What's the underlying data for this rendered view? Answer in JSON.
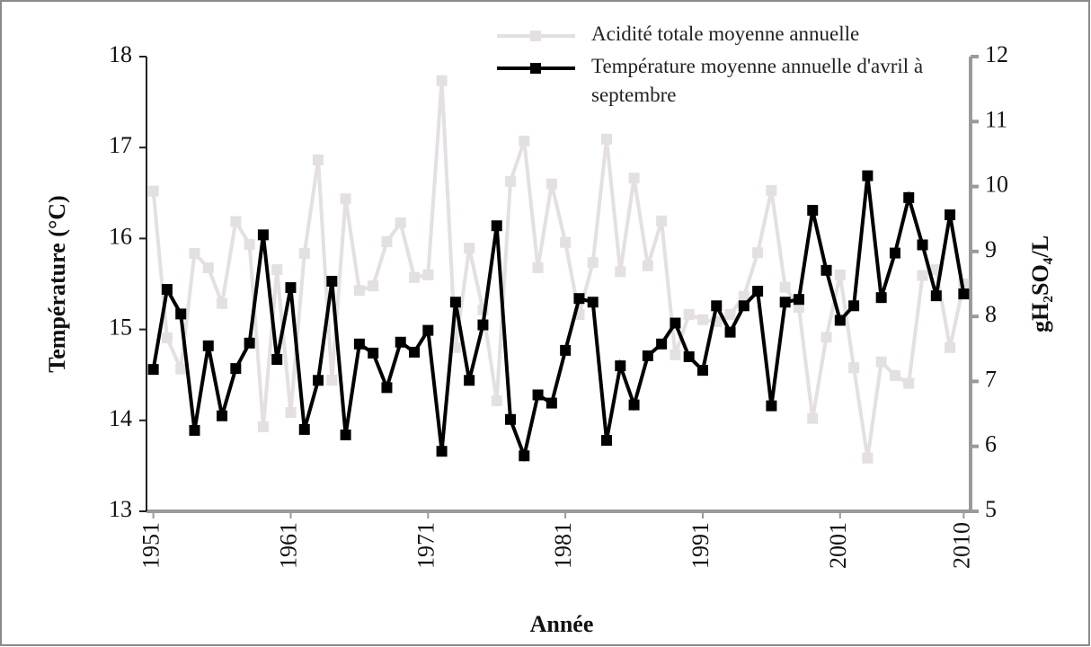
{
  "chart_data": {
    "type": "line",
    "x_label": "Année",
    "y_label": "Température (°C)",
    "y2_label": "gH₂SO₄/L",
    "x": [
      1951,
      1952,
      1953,
      1954,
      1955,
      1956,
      1957,
      1958,
      1959,
      1960,
      1961,
      1962,
      1963,
      1964,
      1965,
      1966,
      1967,
      1968,
      1969,
      1970,
      1971,
      1972,
      1973,
      1974,
      1975,
      1976,
      1977,
      1978,
      1979,
      1980,
      1981,
      1982,
      1983,
      1984,
      1985,
      1986,
      1987,
      1988,
      1989,
      1990,
      1991,
      1992,
      1993,
      1994,
      1995,
      1996,
      1997,
      1998,
      1999,
      2000,
      2001,
      2002,
      2003,
      2004,
      2005,
      2006,
      2007,
      2008,
      2009,
      2010
    ],
    "xlim": [
      1950.5,
      2010.5
    ],
    "xticks": [
      1951,
      1961,
      1971,
      1981,
      1991,
      2001,
      2010
    ],
    "ylim": [
      13,
      18
    ],
    "yticks": [
      13,
      14,
      15,
      16,
      17,
      18
    ],
    "y2lim": [
      5,
      12
    ],
    "y2ticks": [
      5,
      6,
      7,
      8,
      9,
      10,
      11,
      12
    ],
    "legend": "upper center",
    "series": [
      {
        "name": "Acidité totale moyenne annuelle",
        "color": "#e3dfe3",
        "axis": "y2",
        "values": [
          9.93,
          7.67,
          7.19,
          8.97,
          8.75,
          8.2,
          9.46,
          9.11,
          6.3,
          8.72,
          6.52,
          8.97,
          10.41,
          7.02,
          9.81,
          8.4,
          8.47,
          9.15,
          9.44,
          8.6,
          8.64,
          11.63,
          7.52,
          9.05,
          8.1,
          6.7,
          10.08,
          10.7,
          8.75,
          10.04,
          9.14,
          8.03,
          8.83,
          10.73,
          8.69,
          10.13,
          8.78,
          9.47,
          7.41,
          8.03,
          7.95,
          7.92,
          8.03,
          8.31,
          8.98,
          9.94,
          8.45,
          8.14,
          6.43,
          7.68,
          8.64,
          7.21,
          5.82,
          7.3,
          7.09,
          6.97,
          8.63,
          8.72,
          7.52,
          8.5
        ]
      },
      {
        "name": "Température moyenne annuelle d'avril à septembre",
        "color": "#000000",
        "values": [
          14.56,
          15.44,
          15.17,
          13.89,
          14.82,
          14.05,
          14.57,
          14.85,
          16.04,
          14.67,
          15.46,
          13.9,
          14.44,
          15.53,
          13.84,
          14.84,
          14.74,
          14.36,
          14.86,
          14.75,
          14.99,
          13.66,
          15.3,
          14.44,
          15.05,
          16.14,
          14.01,
          13.61,
          14.28,
          14.19,
          14.77,
          15.34,
          15.3,
          13.78,
          14.6,
          14.17,
          14.71,
          14.84,
          15.07,
          14.7,
          14.55,
          15.26,
          14.97,
          15.26,
          15.42,
          14.16,
          15.3,
          15.33,
          16.31,
          15.65,
          15.1,
          15.26,
          16.69,
          15.35,
          15.84,
          16.45,
          15.93,
          15.37,
          16.26,
          15.39
        ]
      }
    ]
  }
}
